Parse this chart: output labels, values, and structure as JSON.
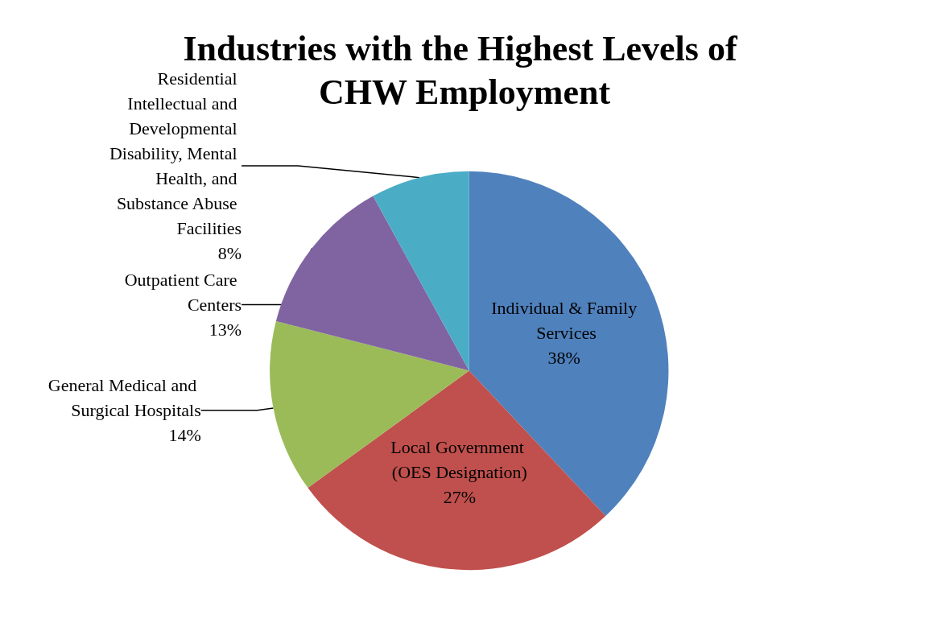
{
  "chart_data": {
    "type": "pie",
    "title": "Industries with the Highest Levels of CHW Employment",
    "categories": [
      "Individual & Family Services",
      "Local Government (OES Designation)",
      "General Medical and Surgical Hospitals",
      "Outpatient Care Centers",
      "Residential Intellectual and Developmental Disability, Mental Health, and Substance Abuse Facilities"
    ],
    "values": [
      38,
      27,
      14,
      13,
      8
    ],
    "value_labels": [
      "38%",
      "27%",
      "14%",
      "13%",
      "8%"
    ],
    "colors": [
      "#4f81bd",
      "#c0504d",
      "#9bbb59",
      "#8064a2",
      "#4bacc6"
    ],
    "legend": false
  }
}
